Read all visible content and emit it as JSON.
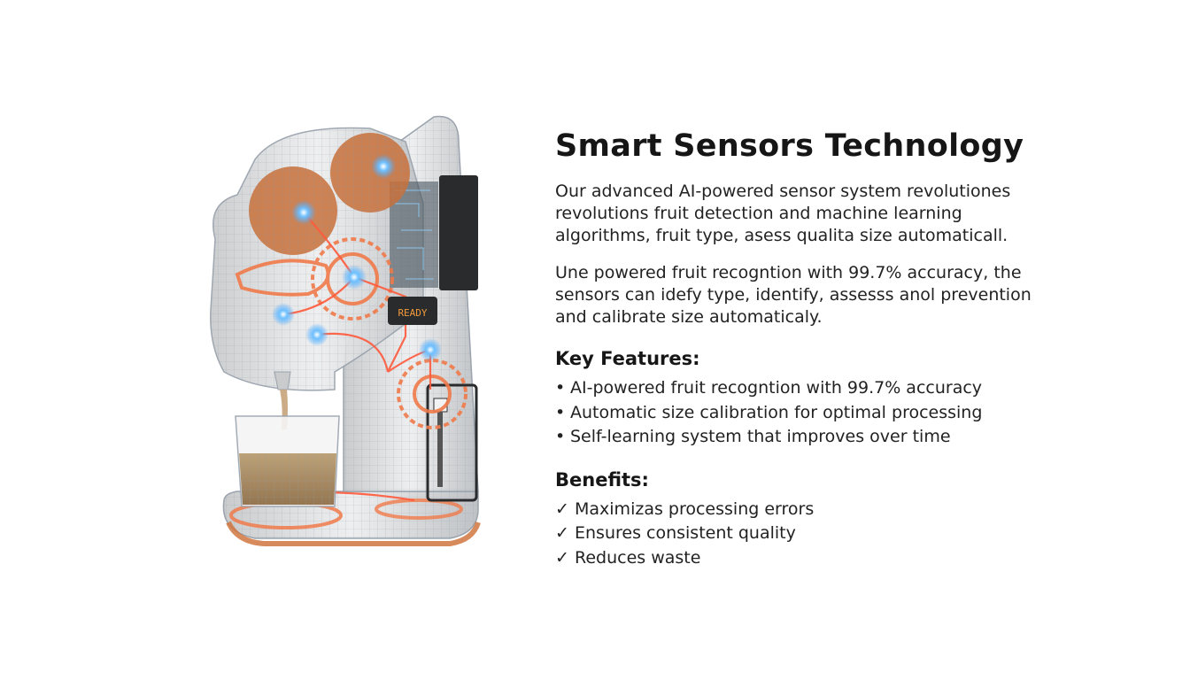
{
  "title": "Smart Sensors Technology",
  "intro_lines": [
    "Our advanced AI-powered sensor system revolutiones",
    "revolutions fruit detection and machine learning",
    "algorithms, fruit type, asess qualita size automaticall."
  ],
  "detail_lines": [
    "Une powered fruit recogntion with 99.7% accuracy, the",
    "sensors can idefy type, identify, assesss anol prevention",
    "and calibrate size automaticaly."
  ],
  "key_features": {
    "heading": "Key Features:",
    "bullet": "•",
    "items": [
      "AI-powered fruit recogntion with 99.7% accuracy",
      "Automatic size calibration for optimal processing",
      "Self-learning system that improves over time"
    ]
  },
  "benefits": {
    "heading": "Benefits:",
    "check": "✓",
    "items": [
      "Maximizas processing errors",
      "Ensures consistent quality",
      "Reduces waste"
    ]
  },
  "illustration": {
    "display_text": "READY",
    "colors": {
      "body": "#d9dadb",
      "wire": "#9aa3ad",
      "gear": "#f07a4a",
      "fruit": "#c8703a",
      "sensor": "#4aa8ff",
      "juice": "#a8875a",
      "display": "#f29a3a"
    }
  }
}
